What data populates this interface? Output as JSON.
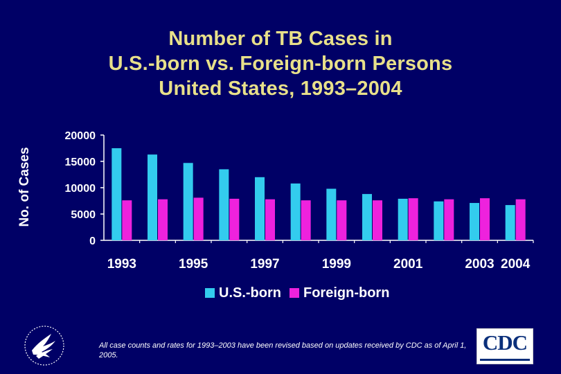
{
  "title": {
    "line1": "Number of TB Cases in",
    "line2": "U.S.-born vs. Foreign-born Persons",
    "line3": "United States, 1993–2004"
  },
  "chart_data": {
    "type": "bar",
    "title": "Number of TB Cases in U.S.-born vs. Foreign-born Persons United States, 1993–2004",
    "ylabel": "No. of Cases",
    "xlabel": "",
    "ylim": [
      0,
      20000
    ],
    "yticks": [
      "20000",
      "15000",
      "10000",
      "5000",
      "0"
    ],
    "categories": [
      "1993",
      "1994",
      "1995",
      "1996",
      "1997",
      "1998",
      "1999",
      "2000",
      "2001",
      "2002",
      "2003",
      "2004"
    ],
    "xtick_labels": [
      "1993",
      "",
      "1995",
      "",
      "1997",
      "",
      "1999",
      "",
      "2001",
      "",
      "2003",
      "2004"
    ],
    "series": [
      {
        "name": "U.S.-born",
        "color": "#33ccee",
        "values": [
          17500,
          16300,
          14700,
          13500,
          12000,
          10800,
          9800,
          8800,
          7900,
          7400,
          7100,
          6700
        ]
      },
      {
        "name": "Foreign-born",
        "color": "#ee22dd",
        "values": [
          7600,
          7800,
          8100,
          7900,
          7800,
          7600,
          7600,
          7600,
          8000,
          7800,
          8000,
          7800
        ]
      }
    ],
    "grid": false,
    "legend_position": "bottom"
  },
  "footnote": "All case counts and rates for 1993–2003 have been revised based on updates received by CDC as of April 1, 2005.",
  "logos": {
    "hhs": "hhs-eagle-logo",
    "cdc": "CDC"
  }
}
